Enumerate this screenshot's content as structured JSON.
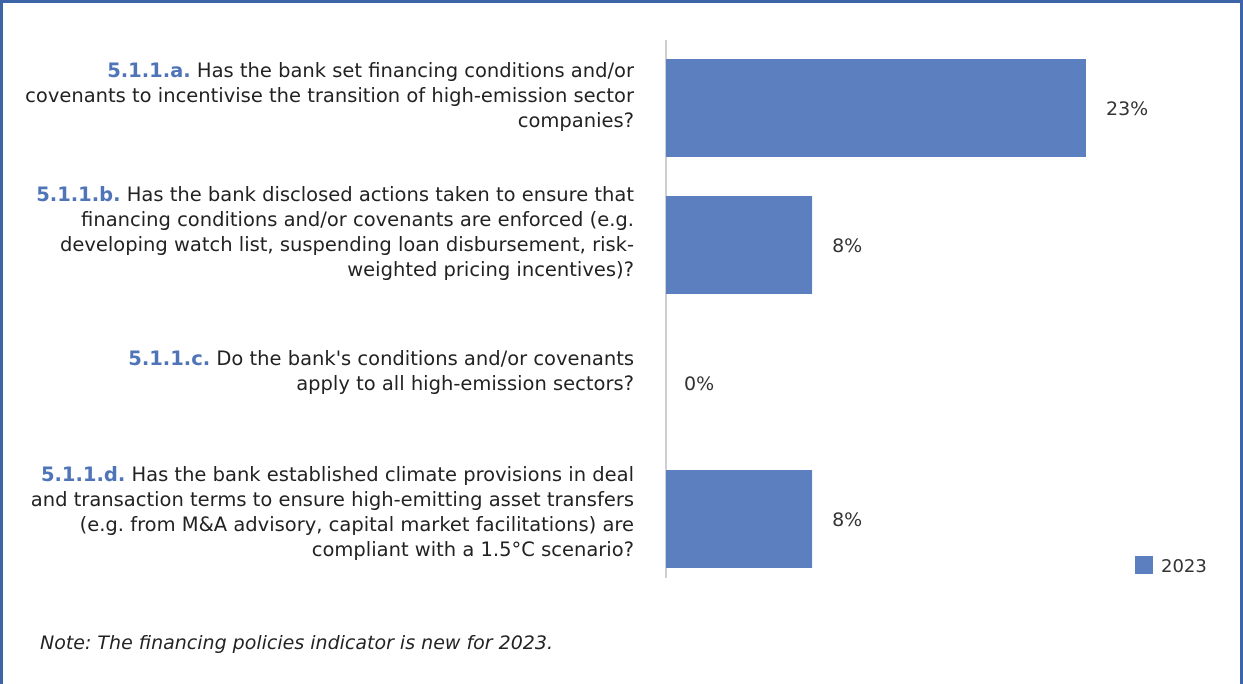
{
  "chart_data": {
    "type": "bar",
    "orientation": "horizontal",
    "categories": [
      {
        "code": "5.1.1.a.",
        "text": "Has the bank set financing conditions and/or covenants to incentivise the transition of high-emission sector companies?"
      },
      {
        "code": "5.1.1.b.",
        "text": "Has the bank disclosed actions taken to ensure that financing conditions and/or covenants are enforced (e.g. developing watch list, suspending loan disbursement, risk-weighted pricing incentives)?"
      },
      {
        "code": "5.1.1.c.",
        "text": "Do the bank's conditions and/or covenants apply to all high-emission sectors?"
      },
      {
        "code": "5.1.1.d.",
        "text": "Has the bank established climate provisions in deal and transaction terms to ensure high-emitting asset transfers (e.g. from M&A advisory, capital market facilitations) are compliant with a 1.5°C scenario?"
      }
    ],
    "series": [
      {
        "name": "2023",
        "values": [
          23,
          8,
          0,
          8
        ],
        "value_labels": [
          "23%",
          "8%",
          "0%",
          "8%"
        ],
        "color": "#5b7fbf"
      }
    ],
    "xlim": [
      0,
      30
    ],
    "grid": false,
    "legend_position": "bottom-right"
  },
  "note": "Note: The financing policies indicator is new for 2023.",
  "colors": {
    "frame": "#3d64a6",
    "code": "#4f74b8",
    "bar": "#5b7fbf"
  }
}
